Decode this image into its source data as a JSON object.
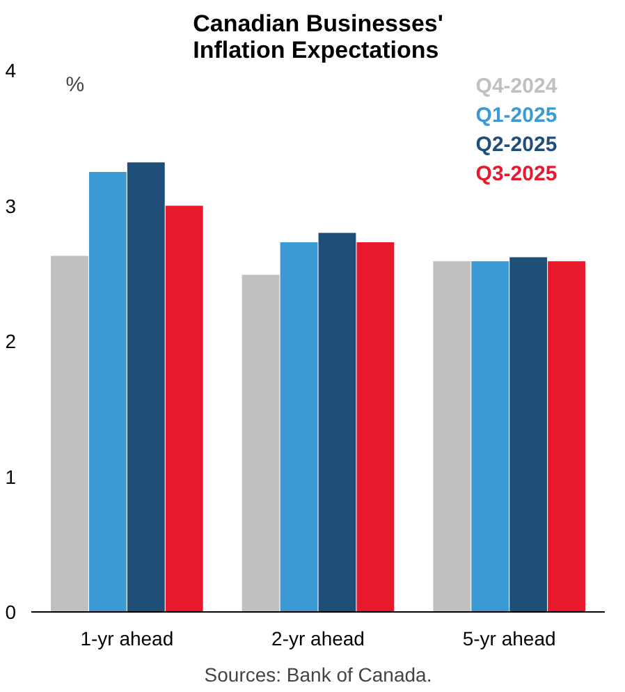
{
  "chart_data": {
    "type": "bar",
    "title": "Canadian Businesses'\nInflation Expectations",
    "ylabel": "%",
    "categories": [
      "1-yr ahead",
      "2-yr ahead",
      "5-yr ahead"
    ],
    "series": [
      {
        "name": "Q4-2024",
        "color": "#c0c0c0",
        "values": [
          2.63,
          2.49,
          2.59
        ]
      },
      {
        "name": "Q1-2025",
        "color": "#3b9ad4",
        "values": [
          3.25,
          2.73,
          2.59
        ]
      },
      {
        "name": "Q2-2025",
        "color": "#1f4e79",
        "values": [
          3.32,
          2.8,
          2.62
        ]
      },
      {
        "name": "Q3-2025",
        "color": "#e8192c",
        "values": [
          3.0,
          2.73,
          2.59
        ]
      }
    ],
    "ylim": [
      0,
      4
    ],
    "yticks": [
      0,
      1,
      2,
      3,
      4
    ],
    "grid": false,
    "legend": "top right",
    "annotations": [
      "Sources: Bank of Canada."
    ]
  }
}
